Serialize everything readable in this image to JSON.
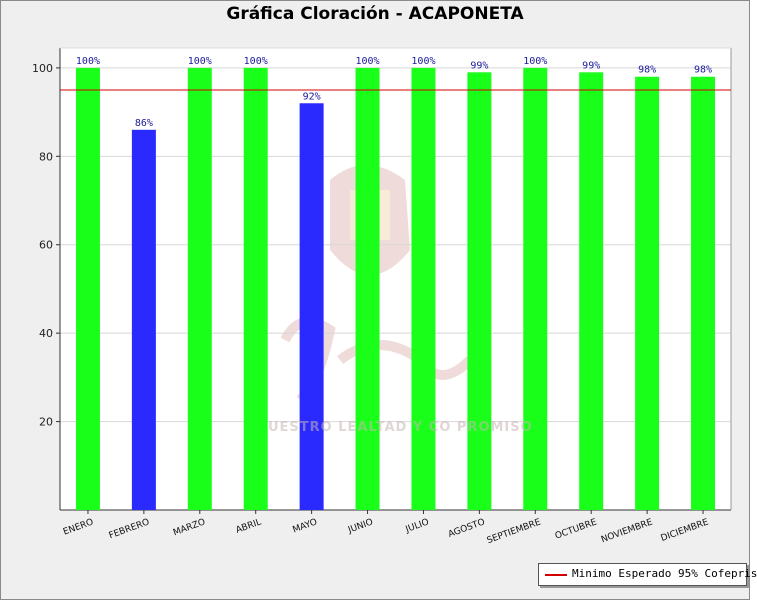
{
  "chart_data": {
    "type": "bar",
    "title": "Gráfica Cloración - ACAPONETA",
    "xlabel": "",
    "ylabel": "",
    "ylim": [
      0,
      100
    ],
    "yticks": [
      20,
      40,
      60,
      80,
      100
    ],
    "grid": true,
    "legend_position": "bottom-right",
    "categories": [
      "ENERO",
      "FEBRERO",
      "MARZO",
      "ABRIL",
      "MAYO",
      "JUNIO",
      "JULIO",
      "AGOSTO",
      "SEPTIEMBRE",
      "OCTUBRE",
      "NOVIEMBRE",
      "DICIEMBRE"
    ],
    "values": [
      100,
      86,
      100,
      100,
      92,
      100,
      100,
      99,
      100,
      99,
      98,
      98
    ],
    "data_labels": [
      "100%",
      "86%",
      "100%",
      "100%",
      "92%",
      "100%",
      "100%",
      "99%",
      "100%",
      "99%",
      "98%",
      "98%"
    ],
    "bar_colors": [
      "#1aff1a",
      "#2a2aff",
      "#1aff1a",
      "#1aff1a",
      "#2a2aff",
      "#1aff1a",
      "#1aff1a",
      "#1aff1a",
      "#1aff1a",
      "#1aff1a",
      "#1aff1a",
      "#1aff1a"
    ],
    "reference_line": {
      "value": 95,
      "label": "Minimo Esperado 95% Cofepris",
      "color": "#d40000"
    }
  },
  "watermark": {
    "text": "UESTRO LEALTAD Y CO PROMISO"
  }
}
